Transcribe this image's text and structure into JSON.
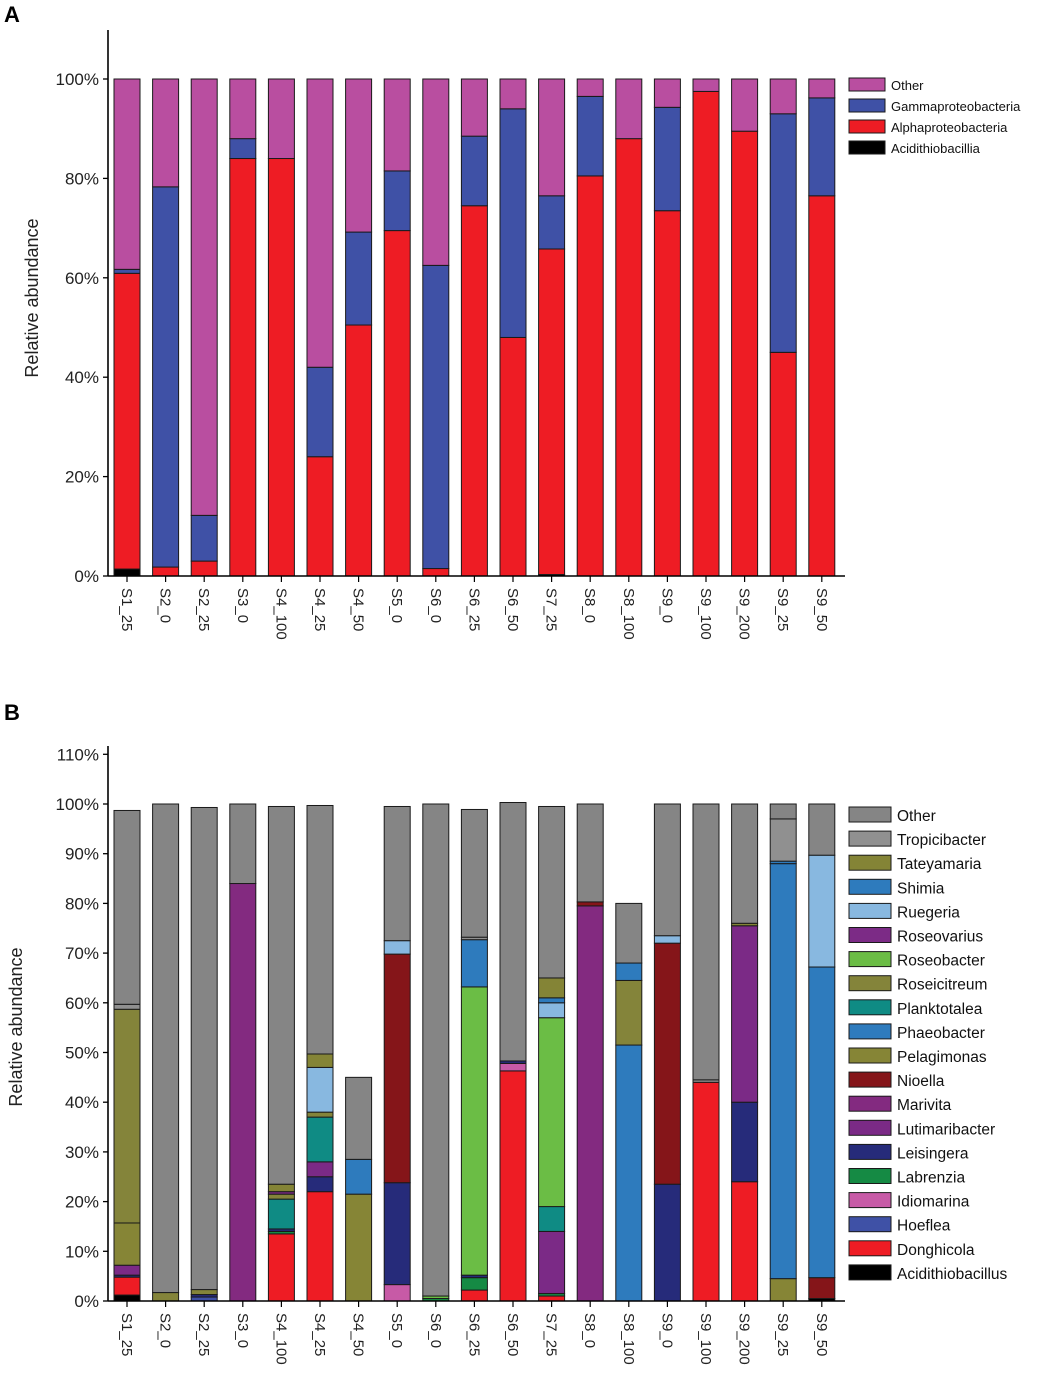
{
  "chart_data": [
    {
      "panel_label": "A",
      "type": "bar",
      "stacked": true,
      "title": "",
      "xlabel": "",
      "ylabel": "Relative abundance",
      "ylim": [
        0,
        110
      ],
      "yticks": [
        "0%",
        "20%",
        "40%",
        "60%",
        "80%",
        "100%"
      ],
      "categories": [
        "S1_25",
        "S2_0",
        "S2_25",
        "S3_0",
        "S4_100",
        "S4_25",
        "S4_50",
        "S5_0",
        "S6_0",
        "S6_25",
        "S6_50",
        "S7_25",
        "S8_0",
        "S8_100",
        "S9_0",
        "S9_100",
        "S9_200",
        "S9_25",
        "S9_50"
      ],
      "legend_position": "top-right",
      "series": [
        {
          "name": "Acidithiobacillia",
          "color": "#000000",
          "values": [
            1.4,
            0,
            0,
            0,
            0,
            0,
            0,
            0,
            0,
            0,
            0,
            0.3,
            0,
            0,
            0,
            0,
            0,
            0,
            0
          ]
        },
        {
          "name": "Alphaproteobacteria",
          "color": "#ee1c24",
          "values": [
            59.5,
            1.8,
            3.0,
            84.0,
            84.0,
            24.0,
            50.5,
            69.5,
            1.5,
            74.5,
            48.0,
            65.5,
            80.5,
            88.0,
            73.5,
            97.5,
            89.5,
            45.0,
            76.5
          ]
        },
        {
          "name": "Gammaproteobacteria",
          "color": "#3f51a6",
          "values": [
            0.8,
            76.5,
            9.2,
            4.0,
            0,
            18.0,
            18.7,
            12.0,
            61.0,
            14.0,
            46.0,
            10.7,
            16.0,
            0,
            20.8,
            0,
            0,
            48.0,
            19.7
          ]
        },
        {
          "name": "Other",
          "color": "#b94ea0",
          "values": [
            38.3,
            21.7,
            87.8,
            12.0,
            16.0,
            58.0,
            30.8,
            18.5,
            37.5,
            11.5,
            6.0,
            23.5,
            3.5,
            12.0,
            5.7,
            2.5,
            10.5,
            7.0,
            3.8
          ]
        }
      ]
    },
    {
      "panel_label": "B",
      "type": "bar",
      "stacked": true,
      "title": "",
      "xlabel": "",
      "ylabel": "Relative abundance",
      "ylim": [
        0,
        110
      ],
      "yticks": [
        "0%",
        "10%",
        "20%",
        "30%",
        "40%",
        "50%",
        "60%",
        "70%",
        "80%",
        "90%",
        "100%",
        "110%"
      ],
      "categories": [
        "S1_25",
        "S2_0",
        "S2_25",
        "S3_0",
        "S4_100",
        "S4_25",
        "S4_50",
        "S5_0",
        "S6_0",
        "S6_25",
        "S6_50",
        "S7_25",
        "S8_0",
        "S8_100",
        "S9_0",
        "S9_100",
        "S9_200",
        "S9_25",
        "S9_50"
      ],
      "legend_position": "right",
      "series": [
        {
          "name": "Acidithiobacillus",
          "color": "#000000",
          "values": [
            1.2,
            0,
            0,
            0,
            0,
            0,
            0,
            0,
            0,
            0,
            0,
            0,
            0,
            0,
            0,
            0,
            0,
            0,
            0.5
          ]
        },
        {
          "name": "Donghicola",
          "color": "#ee1c24",
          "values": [
            3.6,
            0,
            0,
            0,
            13.5,
            22.0,
            0,
            0,
            0,
            2.2,
            46.3,
            1.0,
            0,
            0,
            0,
            44.0,
            24.0,
            0,
            0
          ]
        },
        {
          "name": "Hoeflea",
          "color": "#3f51a6",
          "values": [
            0,
            0,
            0.8,
            0,
            0,
            0,
            0,
            0,
            0,
            0,
            0,
            0,
            0,
            0,
            0,
            0,
            0,
            0,
            0
          ]
        },
        {
          "name": "Idiomarina",
          "color": "#c75aa6",
          "values": [
            0,
            0,
            0,
            0,
            0,
            0,
            0,
            3.3,
            0,
            0,
            1.5,
            0,
            0,
            0,
            0,
            0,
            0,
            0,
            0
          ]
        },
        {
          "name": "Labrenzia",
          "color": "#158a44",
          "values": [
            0,
            0,
            0,
            0,
            0.5,
            0,
            0,
            0,
            0.5,
            2.5,
            0,
            0.5,
            0,
            0,
            0,
            0,
            0,
            0,
            0
          ]
        },
        {
          "name": "Leisingera",
          "color": "#262b7a",
          "values": [
            0.4,
            0,
            0.5,
            0,
            0.5,
            3.0,
            0,
            20.5,
            0,
            0.5,
            0.5,
            0,
            0,
            0,
            23.5,
            0,
            16.0,
            0,
            0
          ]
        },
        {
          "name": "Lutimaribacter",
          "color": "#7b2a86",
          "values": [
            2.0,
            0,
            0,
            0,
            0,
            3.0,
            0,
            0,
            0,
            0,
            0,
            12.5,
            0,
            0,
            0,
            0,
            35.5,
            0,
            0
          ]
        },
        {
          "name": "Marivita",
          "color": "#832a80",
          "values": [
            0,
            0,
            0,
            84.0,
            0,
            0,
            0,
            0,
            0,
            0,
            0,
            0,
            79.5,
            0,
            0,
            0,
            0,
            0,
            0
          ]
        },
        {
          "name": "Nioella",
          "color": "#851519",
          "values": [
            0,
            0,
            0,
            0,
            0,
            0,
            0,
            46.0,
            0,
            0,
            0,
            0,
            0.8,
            0,
            48.5,
            0,
            0,
            0,
            4.2
          ]
        },
        {
          "name": "Pelagimonas",
          "color": "#868536",
          "values": [
            8.5,
            0,
            0,
            0,
            0,
            0,
            21.5,
            0,
            0,
            0,
            0,
            0,
            0,
            0,
            0,
            0,
            0,
            4.5,
            0
          ]
        },
        {
          "name": "Phaeobacter",
          "color": "#2e7bbd",
          "values": [
            0,
            0,
            0,
            0,
            0,
            0,
            7.0,
            0,
            0,
            0,
            0,
            0,
            0,
            51.5,
            0,
            0,
            0,
            83.5,
            62.5
          ]
        },
        {
          "name": "Planktotalea",
          "color": "#0f8b84",
          "values": [
            0,
            0,
            0,
            0,
            6.0,
            9.0,
            0,
            0,
            0,
            0,
            0,
            5.0,
            0,
            0,
            0,
            0,
            0,
            0,
            0
          ]
        },
        {
          "name": "Roseicitreum",
          "color": "#84843a",
          "values": [
            43.0,
            1.7,
            1.0,
            0,
            1.0,
            1.0,
            0,
            0,
            0,
            0,
            0,
            0,
            0,
            13.0,
            0,
            0,
            0,
            0,
            0
          ]
        },
        {
          "name": "Roseobacter",
          "color": "#6bbd45",
          "values": [
            0,
            0,
            0,
            0,
            0,
            0,
            0,
            0,
            0.5,
            58.0,
            0,
            38.0,
            0,
            0,
            0,
            0,
            0,
            0,
            0
          ]
        },
        {
          "name": "Roseovarius",
          "color": "#7c2b86",
          "values": [
            0,
            0,
            0,
            0,
            0.5,
            0,
            0,
            0,
            0,
            0,
            0,
            0,
            0,
            0,
            0,
            0,
            0,
            0,
            0
          ]
        },
        {
          "name": "Ruegeria",
          "color": "#88b8e0",
          "values": [
            0,
            0,
            0,
            0,
            0,
            9.0,
            0,
            2.7,
            0,
            0,
            0,
            3.0,
            0,
            0,
            1.5,
            0,
            0,
            0,
            22.5
          ]
        },
        {
          "name": "Shimia",
          "color": "#2e7bbd",
          "values": [
            0,
            0,
            0,
            0,
            0,
            0,
            0,
            0,
            0,
            9.5,
            0,
            1.0,
            0,
            3.5,
            0,
            0,
            0,
            0.5,
            0
          ]
        },
        {
          "name": "Tateyamaria",
          "color": "#848436",
          "values": [
            0,
            0,
            0,
            0,
            1.5,
            2.7,
            0,
            0,
            0,
            0,
            0,
            4.0,
            0,
            0,
            0,
            0,
            0.5,
            0,
            0
          ]
        },
        {
          "name": "Tropicibacter",
          "color": "#909090",
          "values": [
            1.0,
            0,
            0,
            0,
            0,
            0,
            0,
            0,
            0,
            0.5,
            0,
            0,
            0,
            0,
            0,
            0.5,
            0,
            8.5,
            0
          ]
        },
        {
          "name": "Other",
          "color": "#858585",
          "values": [
            39.0,
            98.3,
            97.0,
            16.0,
            76.0,
            50.0,
            16.5,
            27.0,
            99.0,
            25.7,
            52.0,
            34.5,
            19.7,
            12.0,
            26.5,
            55.5,
            24.0,
            3.0,
            10.3
          ]
        }
      ]
    }
  ]
}
